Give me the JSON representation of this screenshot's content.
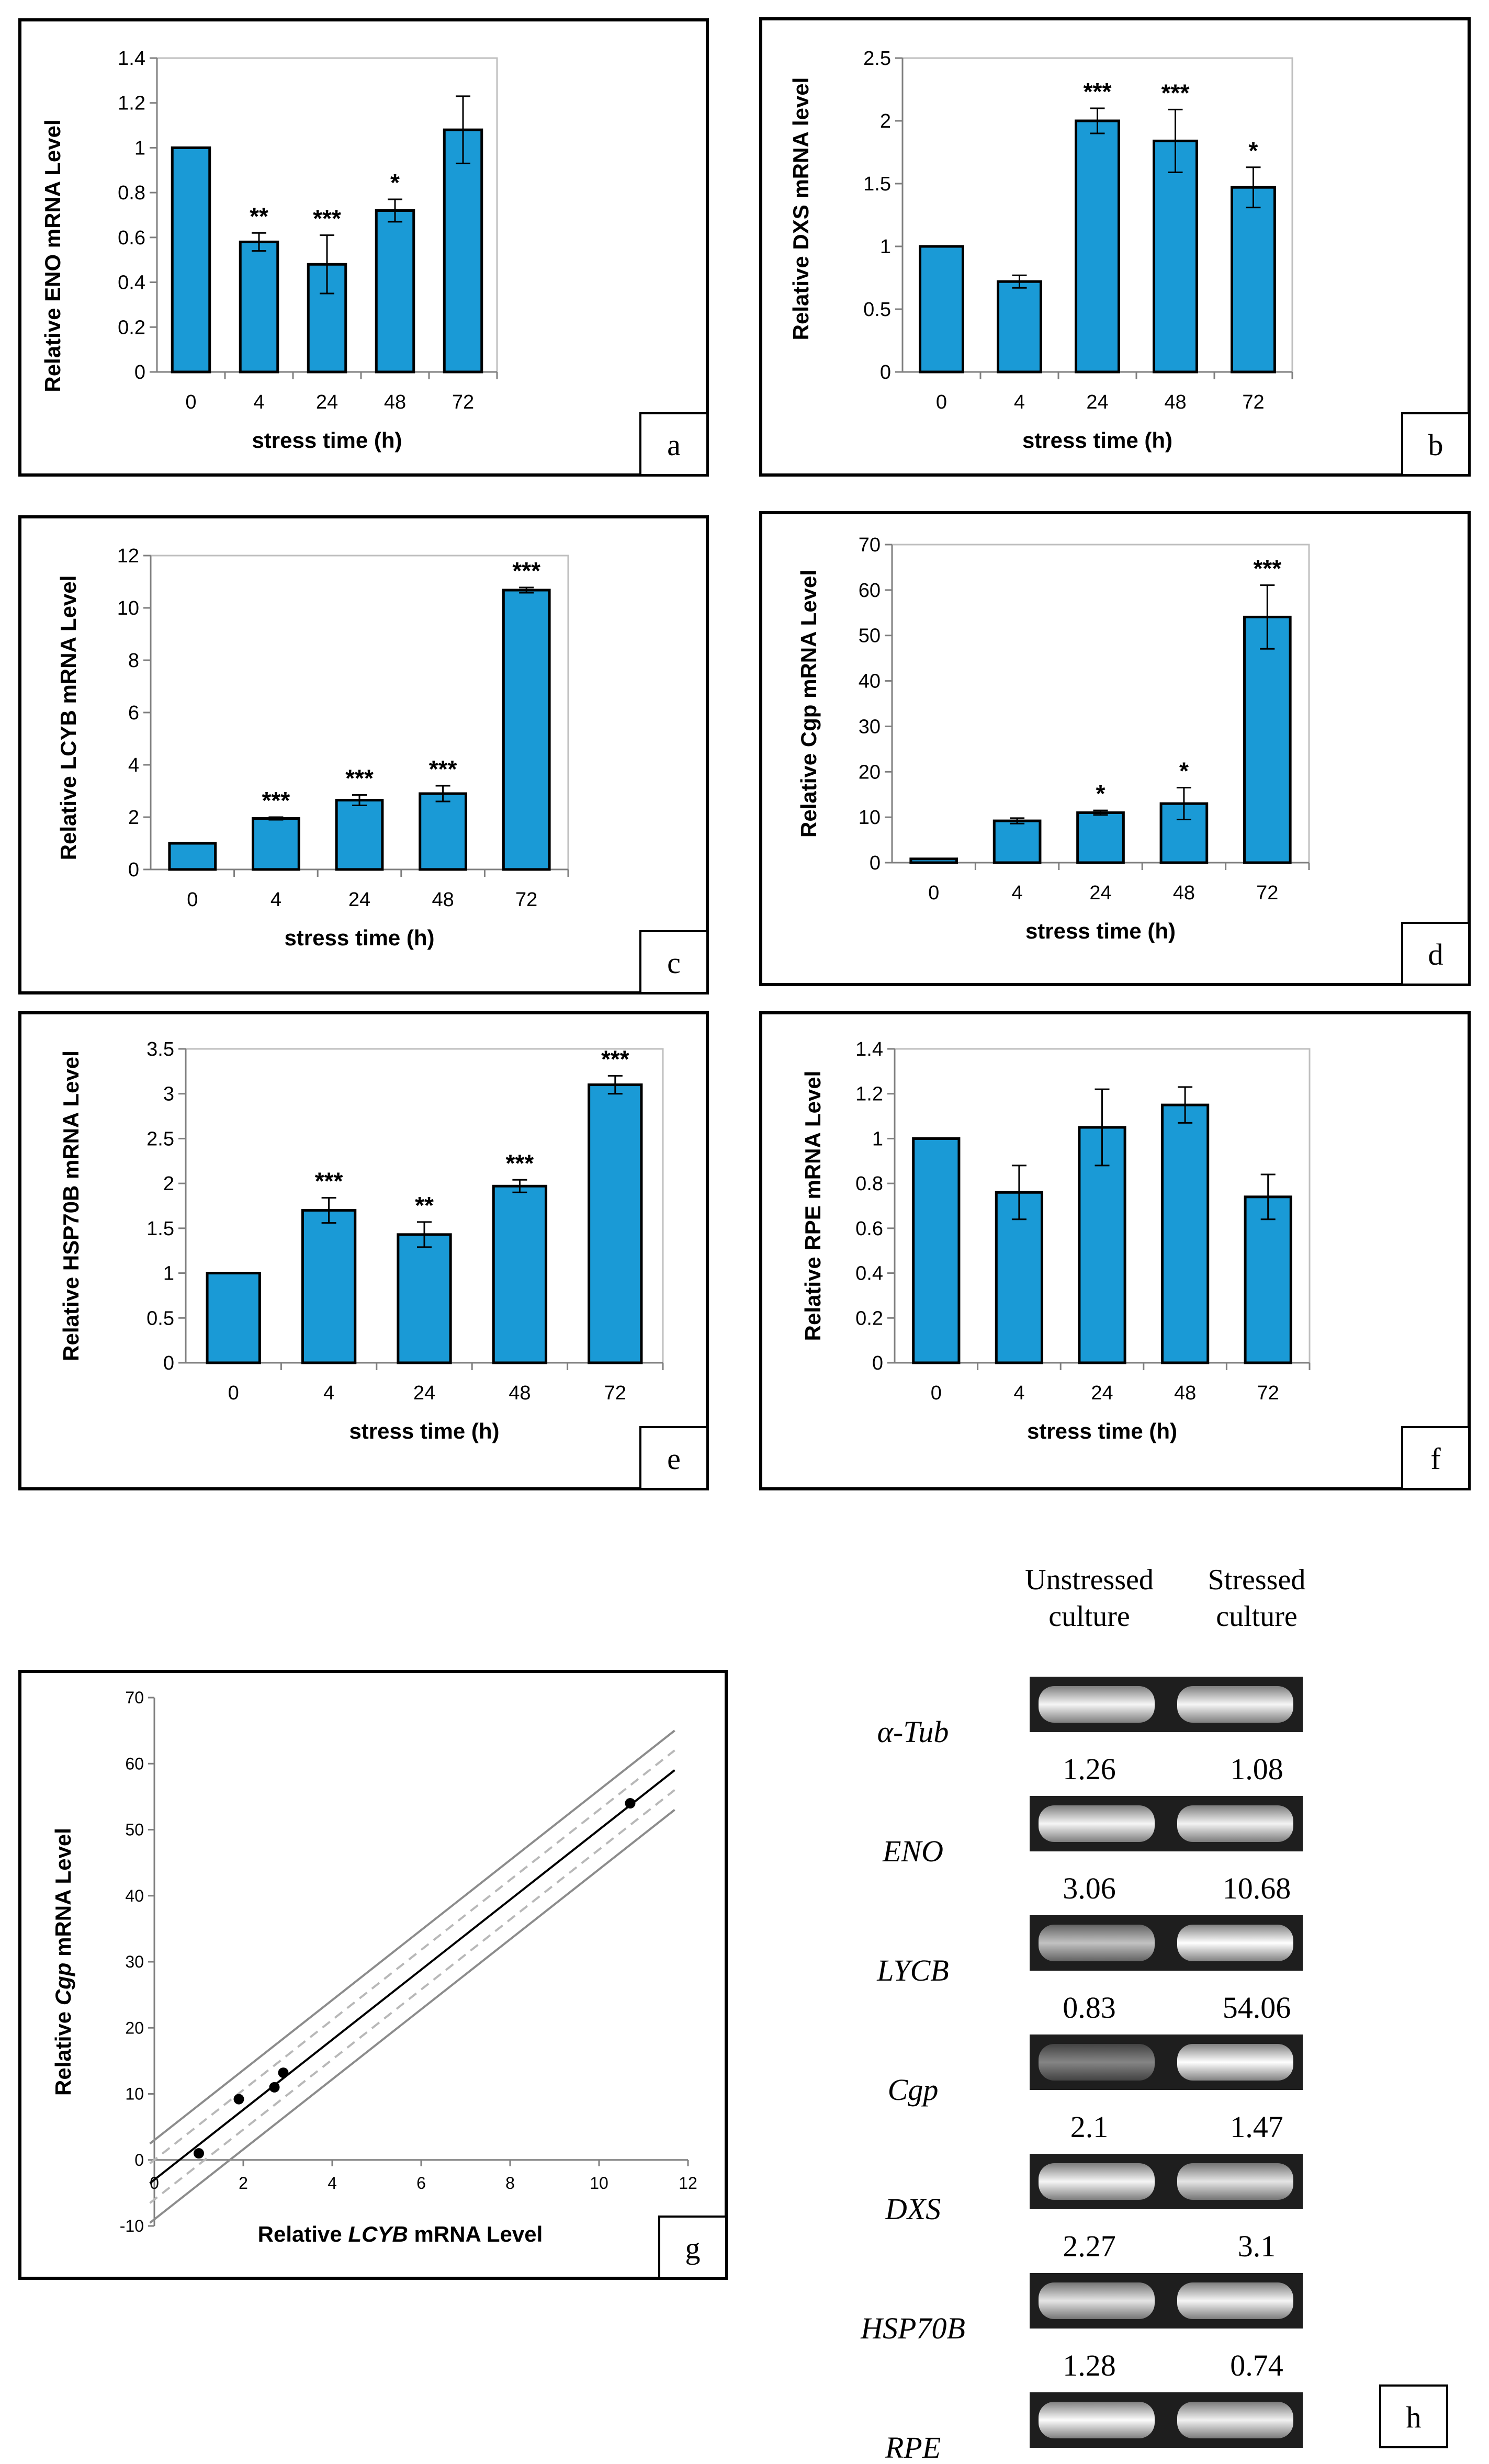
{
  "chart_data": [
    {
      "type": "bar",
      "panel": "a",
      "ylabel": "Relative ENO mRNA Level",
      "xlabel": "stress time (h)",
      "categories": [
        "0",
        "4",
        "24",
        "48",
        "72"
      ],
      "values": [
        1.0,
        0.58,
        0.48,
        0.72,
        1.08
      ],
      "errors": [
        0,
        0.04,
        0.13,
        0.05,
        0.15
      ],
      "significance": [
        "",
        "**",
        "***",
        "*",
        ""
      ],
      "ylim": [
        0,
        1.4
      ],
      "yticks": [
        0,
        0.2,
        0.4,
        0.6,
        0.8,
        1,
        1.2,
        1.4
      ],
      "yticklabels": [
        "0",
        "0.2",
        "0.4",
        "0.6",
        "0.8",
        "1",
        "1.2",
        "1.4"
      ],
      "bar_color": "#1a9ad6"
    },
    {
      "type": "bar",
      "panel": "b",
      "ylabel": "Relative DXS mRNA level",
      "xlabel": "stress time (h)",
      "categories": [
        "0",
        "4",
        "24",
        "48",
        "72"
      ],
      "values": [
        1.0,
        0.72,
        2.0,
        1.84,
        1.47
      ],
      "errors": [
        0,
        0.05,
        0.1,
        0.25,
        0.16
      ],
      "significance": [
        "",
        "",
        "***",
        "***",
        "*"
      ],
      "ylim": [
        0,
        2.5
      ],
      "yticks": [
        0,
        0.5,
        1,
        1.5,
        2,
        2.5
      ],
      "yticklabels": [
        "0",
        "0.5",
        "1",
        "1.5",
        "2",
        "2.5"
      ],
      "bar_color": "#1a9ad6"
    },
    {
      "type": "bar",
      "panel": "c",
      "ylabel": "Relative LCYB mRNA Level",
      "xlabel": "stress time (h)",
      "categories": [
        "0",
        "4",
        "24",
        "48",
        "72"
      ],
      "values": [
        1.0,
        1.95,
        2.65,
        2.9,
        10.68
      ],
      "errors": [
        0,
        0.05,
        0.2,
        0.3,
        0.1
      ],
      "significance": [
        "",
        "***",
        "***",
        "***",
        "***"
      ],
      "ylim": [
        0,
        12
      ],
      "yticks": [
        0,
        2,
        4,
        6,
        8,
        10,
        12
      ],
      "yticklabels": [
        "0",
        "2",
        "4",
        "6",
        "8",
        "10",
        "12"
      ],
      "bar_color": "#1a9ad6"
    },
    {
      "type": "bar",
      "panel": "d",
      "ylabel": "Relative Cgp mRNA Level",
      "xlabel": "stress time (h)",
      "categories": [
        "0",
        "4",
        "24",
        "48",
        "72"
      ],
      "values": [
        0.83,
        9.2,
        11.0,
        13.0,
        54.06
      ],
      "errors": [
        0,
        0.6,
        0.5,
        3.5,
        7.0
      ],
      "significance": [
        "",
        "",
        "*",
        "*",
        "***"
      ],
      "ylim": [
        0,
        70
      ],
      "yticks": [
        0,
        10,
        20,
        30,
        40,
        50,
        60,
        70
      ],
      "yticklabels": [
        "0",
        "10",
        "20",
        "30",
        "40",
        "50",
        "60",
        "70"
      ],
      "bar_color": "#1a9ad6"
    },
    {
      "type": "bar",
      "panel": "e",
      "ylabel": "Relative HSP70B mRNA Level",
      "xlabel": "stress time (h)",
      "categories": [
        "0",
        "4",
        "24",
        "48",
        "72"
      ],
      "values": [
        1.0,
        1.7,
        1.43,
        1.97,
        3.1
      ],
      "errors": [
        0,
        0.14,
        0.14,
        0.07,
        0.1
      ],
      "significance": [
        "",
        "***",
        "**",
        "***",
        "***"
      ],
      "ylim": [
        0,
        3.5
      ],
      "yticks": [
        0,
        0.5,
        1,
        1.5,
        2,
        2.5,
        3,
        3.5
      ],
      "yticklabels": [
        "0",
        "0.5",
        "1",
        "1.5",
        "2",
        "2.5",
        "3",
        "3.5"
      ],
      "bar_color": "#1a9ad6"
    },
    {
      "type": "bar",
      "panel": "f",
      "ylabel": "Relative RPE mRNA Level",
      "xlabel": "stress time (h)",
      "categories": [
        "0",
        "4",
        "24",
        "48",
        "72"
      ],
      "values": [
        1.0,
        0.76,
        1.05,
        1.15,
        0.74
      ],
      "errors": [
        0,
        0.12,
        0.17,
        0.08,
        0.1
      ],
      "significance": [
        "",
        "",
        "",
        "",
        ""
      ],
      "ylim": [
        0,
        1.4
      ],
      "yticks": [
        0,
        0.2,
        0.4,
        0.6,
        0.8,
        1,
        1.2,
        1.4
      ],
      "yticklabels": [
        "0",
        "0.2",
        "0.4",
        "0.6",
        "0.8",
        "1",
        "1.2",
        "1.4"
      ],
      "bar_color": "#1a9ad6"
    },
    {
      "type": "scatter",
      "panel": "g",
      "xlabel_pre": "Relative ",
      "xlabel_gene": "LCYB",
      "xlabel_post": " mRNA Level",
      "ylabel_pre": "Relative ",
      "ylabel_gene": "Cgp",
      "ylabel_post": " mRNA Level",
      "x": [
        1.0,
        1.9,
        2.7,
        2.9,
        10.7
      ],
      "y": [
        1.0,
        9.2,
        11.0,
        13.2,
        54.0
      ],
      "fit": {
        "slope": 5.3,
        "intercept": -3.0
      },
      "xlim": [
        0,
        12
      ],
      "ylim": [
        -10,
        70
      ],
      "xticks": [
        0,
        2,
        4,
        6,
        8,
        10,
        12
      ],
      "xticklabels": [
        "0",
        "2",
        "4",
        "6",
        "8",
        "10",
        "12"
      ],
      "yticks": [
        -10,
        0,
        10,
        20,
        30,
        40,
        50,
        60,
        70
      ],
      "yticklabels": [
        "-10",
        "0",
        "10",
        "20",
        "30",
        "40",
        "50",
        "60",
        "70"
      ]
    },
    {
      "type": "table",
      "panel": "h",
      "columns": [
        "Unstressed culture",
        "Stressed culture"
      ],
      "col1_line1": "Unstressed",
      "col1_line2": "culture",
      "col2_line1": "Stressed",
      "col2_line2": "culture",
      "rows": [
        {
          "gene": "α-Tub",
          "unstressed": "",
          "stressed": "",
          "u_int": 0.95,
          "s_int": 0.95
        },
        {
          "gene": "ENO",
          "unstressed": "1.26",
          "stressed": "1.08",
          "u_int": 0.95,
          "s_int": 0.93
        },
        {
          "gene": "LYCB",
          "unstressed": "3.06",
          "stressed": "10.68",
          "u_int": 0.65,
          "s_int": 1.0
        },
        {
          "gene": "Cgp",
          "unstressed": "0.83",
          "stressed": "54.06",
          "u_int": 0.3,
          "s_int": 1.0
        },
        {
          "gene": "DXS",
          "unstressed": "2.1",
          "stressed": "1.47",
          "u_int": 0.95,
          "s_int": 0.85
        },
        {
          "gene": "HSP70B",
          "unstressed": "2.27",
          "stressed": "3.1",
          "u_int": 0.85,
          "s_int": 0.95
        },
        {
          "gene": "RPE",
          "unstressed": "1.28",
          "stressed": "0.74",
          "u_int": 0.98,
          "s_int": 0.92
        }
      ]
    }
  ]
}
